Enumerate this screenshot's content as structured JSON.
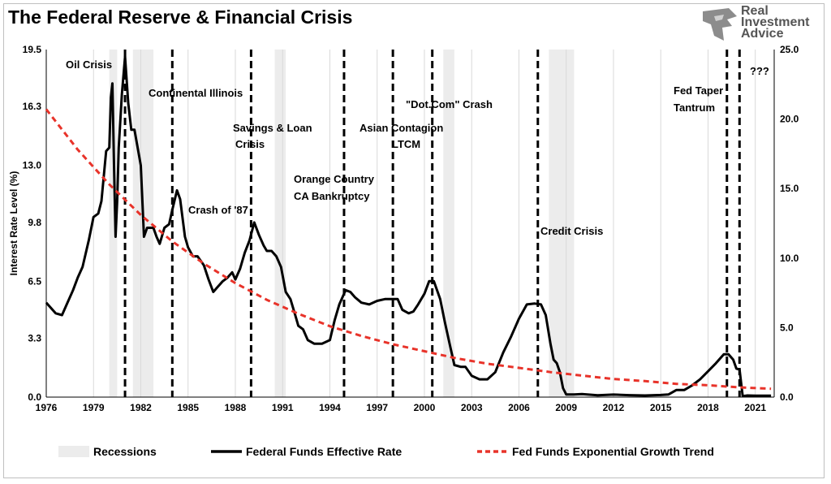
{
  "title": "The Federal Reserve & Financial Crisis",
  "brand": {
    "line1": "Real",
    "line2": "Investment",
    "line3": "Advice"
  },
  "chart_data": {
    "type": "line",
    "title": "The Federal Reserve & Financial Crisis",
    "ylabel": "Interest Rate Level (%)",
    "x_ticks": [
      "1976",
      "1979",
      "1982",
      "1985",
      "1988",
      "1991",
      "1994",
      "1997",
      "2000",
      "2003",
      "2006",
      "2009",
      "2012",
      "2015",
      "2018",
      "2021"
    ],
    "x_range": [
      1976,
      2022.2
    ],
    "y_left_ticks": [
      "0.0",
      "3.3",
      "6.5",
      "9.8",
      "13.0",
      "16.3",
      "19.5"
    ],
    "y_left_range": [
      0,
      19.5
    ],
    "y_right_ticks": [
      "0.0",
      "5.0",
      "10.0",
      "15.0",
      "20.0",
      "25.0"
    ],
    "y_right_range": [
      0,
      25
    ],
    "grid": "vertical",
    "legend_placement": "bottom",
    "recessions": [
      [
        1980.0,
        1980.5
      ],
      [
        1981.5,
        1982.8
      ],
      [
        1990.5,
        1991.2
      ],
      [
        2001.2,
        2001.9
      ],
      [
        2007.9,
        2009.5
      ]
    ],
    "events": [
      {
        "x": 1981.0,
        "label": "Oil Crisis"
      },
      {
        "x": 1984.0,
        "label": "Continental Illinois"
      },
      {
        "x": 1987.8,
        "label": "Crash of '87"
      },
      {
        "x": 1989.0,
        "label": "Savings & Loan Crisis"
      },
      {
        "x": 1994.9,
        "label": "Orange Country CA Bankruptcy"
      },
      {
        "x": 1998.0,
        "label": "Asian Contagion LTCM"
      },
      {
        "x": 2000.5,
        "label": "\"Dot.Com\" Crash"
      },
      {
        "x": 2007.2,
        "label": "Credit Crisis"
      },
      {
        "x": 2019.2,
        "label": "Fed Taper Tantrum"
      },
      {
        "x": 2020.0,
        "label": "???"
      }
    ],
    "series": [
      {
        "name": "Federal Funds Effective Rate",
        "color": "#000000",
        "axis": "left",
        "x": [
          1976.0,
          1976.3,
          1976.6,
          1977.0,
          1977.3,
          1977.7,
          1978.0,
          1978.3,
          1978.7,
          1979.0,
          1979.3,
          1979.5,
          1979.8,
          1980.0,
          1980.1,
          1980.2,
          1980.3,
          1980.4,
          1980.5,
          1980.6,
          1980.8,
          1981.0,
          1981.2,
          1981.4,
          1981.6,
          1981.8,
          1982.0,
          1982.2,
          1982.4,
          1982.6,
          1982.8,
          1983.0,
          1983.2,
          1983.5,
          1983.8,
          1984.0,
          1984.3,
          1984.5,
          1984.8,
          1985.0,
          1985.3,
          1985.6,
          1986.0,
          1986.3,
          1986.6,
          1986.9,
          1987.2,
          1987.5,
          1987.8,
          1988.0,
          1988.3,
          1988.6,
          1988.9,
          1989.2,
          1989.5,
          1989.8,
          1990.0,
          1990.3,
          1990.6,
          1990.9,
          1991.2,
          1991.5,
          1991.8,
          1992.0,
          1992.3,
          1992.6,
          1993.0,
          1993.5,
          1994.0,
          1994.3,
          1994.6,
          1995.0,
          1995.3,
          1995.6,
          1996.0,
          1996.5,
          1997.0,
          1997.5,
          1998.0,
          1998.3,
          1998.6,
          1999.0,
          1999.3,
          1999.6,
          2000.0,
          2000.3,
          2000.6,
          2001.0,
          2001.3,
          2001.6,
          2001.9,
          2002.3,
          2002.6,
          2003.0,
          2003.5,
          2004.0,
          2004.5,
          2005.0,
          2005.5,
          2006.0,
          2006.5,
          2007.0,
          2007.4,
          2007.7,
          2008.0,
          2008.2,
          2008.4,
          2008.6,
          2008.8,
          2009.0,
          2009.5,
          2010.0,
          2011.0,
          2012.0,
          2013.0,
          2014.0,
          2015.0,
          2015.5,
          2016.0,
          2016.5,
          2017.0,
          2017.5,
          2018.0,
          2018.5,
          2019.0,
          2019.3,
          2019.6,
          2019.8,
          2020.0,
          2020.2,
          2020.5,
          2021.0,
          2021.5,
          2022.0
        ],
        "y": [
          5.3,
          5.0,
          4.7,
          4.6,
          5.2,
          6.0,
          6.7,
          7.3,
          8.8,
          10.1,
          10.3,
          11.0,
          13.8,
          14.0,
          16.8,
          17.6,
          13.0,
          9.0,
          11.0,
          14.0,
          17.0,
          19.1,
          16.5,
          15.0,
          15.0,
          14.0,
          13.0,
          9.0,
          9.5,
          9.5,
          9.5,
          9.0,
          8.6,
          9.5,
          9.7,
          10.5,
          11.6,
          11.1,
          9.0,
          8.4,
          7.9,
          7.9,
          7.4,
          6.6,
          5.9,
          6.2,
          6.5,
          6.7,
          7.0,
          6.6,
          7.2,
          8.1,
          8.8,
          9.8,
          9.1,
          8.5,
          8.2,
          8.2,
          7.9,
          7.3,
          5.9,
          5.5,
          4.6,
          4.0,
          3.8,
          3.2,
          3.0,
          3.0,
          3.2,
          4.3,
          5.2,
          6.0,
          5.9,
          5.6,
          5.3,
          5.2,
          5.4,
          5.5,
          5.5,
          5.5,
          4.9,
          4.7,
          4.8,
          5.2,
          5.8,
          6.5,
          6.5,
          5.5,
          4.2,
          3.0,
          1.8,
          1.7,
          1.7,
          1.2,
          1.0,
          1.0,
          1.4,
          2.5,
          3.4,
          4.4,
          5.2,
          5.25,
          5.2,
          4.6,
          3.0,
          2.1,
          1.9,
          1.4,
          0.5,
          0.15,
          0.15,
          0.17,
          0.1,
          0.14,
          0.11,
          0.09,
          0.12,
          0.15,
          0.4,
          0.4,
          0.66,
          1.0,
          1.45,
          1.9,
          2.4,
          2.4,
          2.1,
          1.6,
          1.55,
          0.05,
          0.09,
          0.08,
          0.08,
          0.08
        ]
      },
      {
        "name": "Fed Funds Exponential Growth Trend",
        "color": "#e8332a",
        "axis": "right",
        "x": [
          1976,
          1978,
          1980,
          1982,
          1984,
          1986,
          1988,
          1990,
          1992,
          1994,
          1996,
          1998,
          2000,
          2002,
          2004,
          2006,
          2008,
          2010,
          2012,
          2014,
          2016,
          2018,
          2020,
          2022
        ],
        "y": [
          20.7,
          17.8,
          15.3,
          13.1,
          11.2,
          9.6,
          8.2,
          7.0,
          6.0,
          5.1,
          4.4,
          3.8,
          3.3,
          2.8,
          2.4,
          2.1,
          1.8,
          1.55,
          1.3,
          1.15,
          0.95,
          0.85,
          0.7,
          0.6
        ]
      }
    ]
  },
  "legend": {
    "recessions": "Recessions",
    "effective": "Federal Funds Effective Rate",
    "trend": "Fed Funds Exponential Growth Trend"
  }
}
